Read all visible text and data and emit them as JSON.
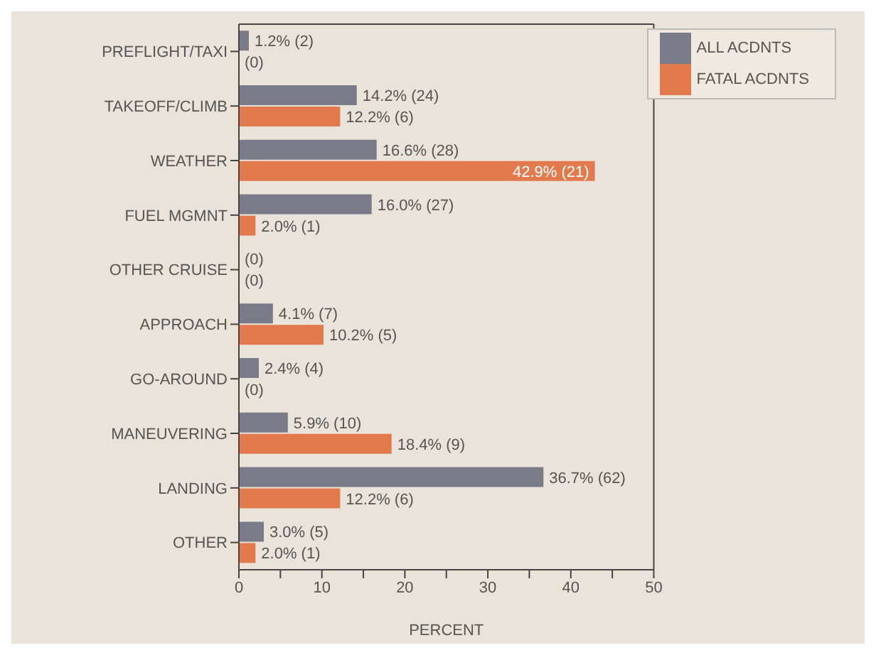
{
  "chart_data": {
    "type": "bar",
    "orientation": "horizontal",
    "xlabel": "PERCENT",
    "categories": [
      "PREFLIGHT/TAXI",
      "TAKEOFF/CLIMB",
      "WEATHER",
      "FUEL MGMNT",
      "OTHER CRUISE",
      "APPROACH",
      "GO-AROUND",
      "MANEUVERING",
      "LANDING",
      "OTHER"
    ],
    "series": [
      {
        "name": "ALL ACDNTS",
        "color": "#7a7b88",
        "values": [
          1.2,
          14.2,
          16.6,
          16.0,
          0,
          4.1,
          2.4,
          5.9,
          36.7,
          3.0
        ],
        "value_labels": [
          "1.2% (2)",
          "14.2% (24)",
          "16.6% (28)",
          "16.0% (27)",
          "(0)",
          "4.1% (7)",
          "2.4% (4)",
          "5.9% (10)",
          "36.7% (62)",
          "3.0% (5)"
        ]
      },
      {
        "name": "FATAL ACDNTS",
        "color": "#e27a4e",
        "values": [
          0,
          12.2,
          42.9,
          2.0,
          0,
          10.2,
          0,
          18.4,
          12.2,
          2.0
        ],
        "value_labels": [
          "(0)",
          "12.2% (6)",
          "42.9% (21)",
          "2.0% (1)",
          "(0)",
          "10.2% (5)",
          "(0)",
          "18.4% (9)",
          "12.2% (6)",
          "2.0% (1)"
        ]
      }
    ],
    "xlim": [
      0,
      50
    ],
    "xticks": [
      0,
      {
        "value": 5,
        "label": null
      },
      10,
      {
        "value": 15,
        "label": null
      },
      20,
      {
        "value": 25,
        "label": null
      },
      30,
      {
        "value": 35,
        "label": null
      },
      40,
      {
        "value": 45,
        "label": null
      },
      50
    ],
    "legend": "top right",
    "grid": false
  }
}
